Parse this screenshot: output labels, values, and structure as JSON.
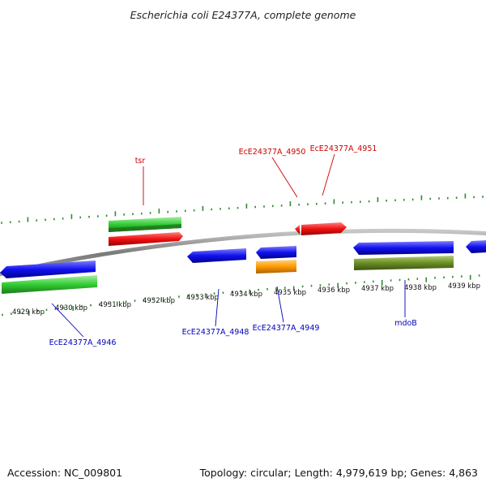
{
  "title": "Escherichia coli E24377A, complete genome",
  "footer": {
    "accession": "Accession: NC_009801",
    "summary": "Topology: circular; Length: 4,979,619 bp; Genes: 4,863"
  },
  "colors": {
    "backbone": "#8a8a8a",
    "tick": "#2e8b2e",
    "label_forward": "#cc0000",
    "label_reverse": "#0000bb",
    "feature_red": "#ee1111",
    "feature_blue": "#1111ee",
    "feature_green": "#33cc33",
    "feature_dark_green": "#2e8b2e",
    "feature_orange": "#ff9900",
    "feature_olive": "#6b8e23"
  },
  "kbp_labels": [
    "4929 kbp",
    "4930 kbp",
    "4931 kbp",
    "4932 kbp",
    "4933 kbp",
    "4934 kbp",
    "4935 kbp",
    "4936 kbp",
    "4937 kbp",
    "4938 kbp",
    "4939 kbp"
  ],
  "gene_labels": [
    {
      "text": "tsr",
      "strand": "forward"
    },
    {
      "text": "EcE24377A_4950",
      "strand": "forward"
    },
    {
      "text": "EcE24377A_4951",
      "strand": "forward"
    },
    {
      "text": "EcE24377A_4946",
      "strand": "reverse"
    },
    {
      "text": "EcE24377A_4948",
      "strand": "reverse"
    },
    {
      "text": "EcE24377A_4949",
      "strand": "reverse"
    },
    {
      "text": "mdoB",
      "strand": "reverse"
    }
  ]
}
